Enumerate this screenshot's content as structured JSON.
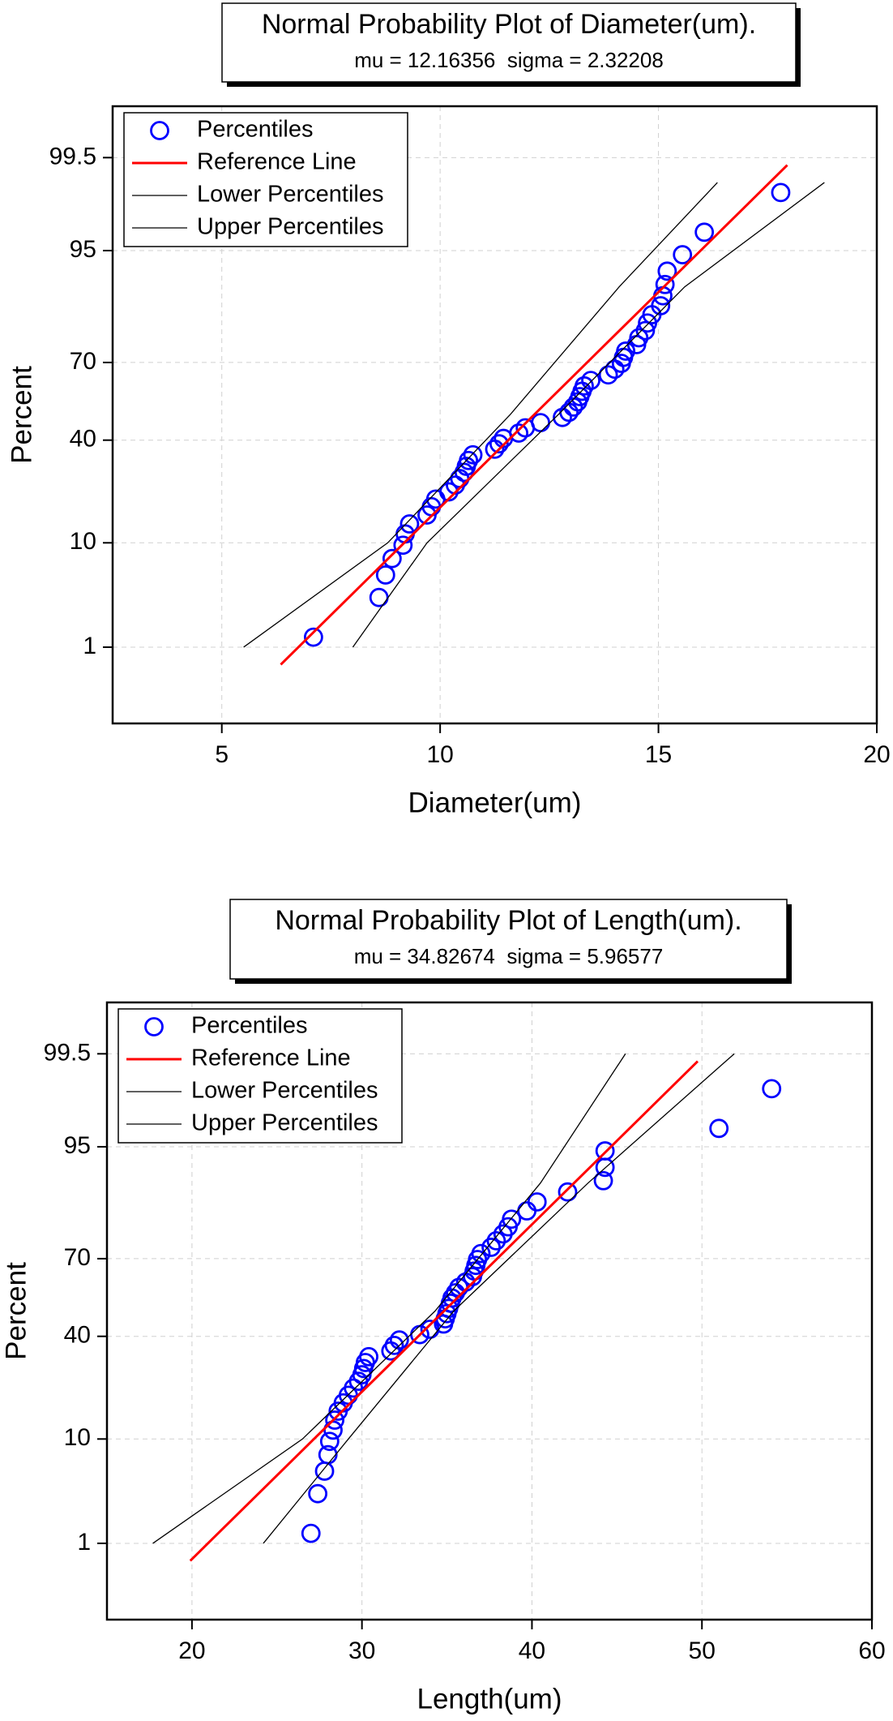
{
  "chart_data": [
    {
      "type": "probability",
      "title": "Normal Probability Plot of Diameter(um).",
      "subtitle": "mu = 12.16356  sigma = 2.32208",
      "x_label": "Diameter(um)",
      "y_label": "Percent",
      "xlim": [
        2.5,
        20
      ],
      "xticks": [
        5,
        10,
        15,
        20
      ],
      "ylim": [
        0.1,
        99.9
      ],
      "yticks": [
        1,
        10,
        40,
        70,
        95,
        99.5
      ],
      "yscale": "probability",
      "grid": true,
      "legend": "top-left",
      "series": [
        {
          "name": "Percentiles",
          "color": "#0000ff",
          "marker": "circle",
          "x": [
            7.1,
            8.6,
            8.75,
            8.9,
            9.15,
            9.2,
            9.3,
            9.7,
            9.8,
            9.9,
            10.2,
            10.35,
            10.45,
            10.55,
            10.6,
            10.65,
            10.75,
            11.25,
            11.35,
            11.45,
            11.8,
            11.95,
            12.3,
            12.8,
            12.95,
            13.05,
            13.15,
            13.2,
            13.25,
            13.3,
            13.45,
            13.85,
            14.0,
            14.15,
            14.2,
            14.25,
            14.5,
            14.55,
            14.7,
            14.75,
            14.85,
            15.05,
            15.1,
            15.15,
            15.2,
            15.55,
            16.05,
            17.8
          ],
          "values": [
            1.3,
            3.37,
            5.44,
            7.51,
            9.59,
            11.66,
            13.73,
            15.8,
            17.88,
            19.95,
            22.02,
            24.09,
            26.17,
            28.24,
            30.31,
            32.38,
            34.46,
            36.53,
            38.6,
            40.67,
            42.75,
            44.82,
            46.89,
            48.96,
            51.04,
            53.11,
            55.18,
            57.25,
            59.33,
            61.4,
            63.47,
            65.54,
            67.62,
            69.69,
            71.76,
            73.83,
            75.91,
            77.98,
            80.05,
            82.12,
            84.2,
            86.27,
            88.34,
            90.41,
            92.49,
            94.56,
            96.63,
            98.7
          ]
        },
        {
          "name": "Reference Line",
          "color": "#ff0000",
          "x": [
            6.35,
            17.95
          ],
          "values": [
            0.62,
            99.38
          ]
        },
        {
          "name": "Lower Percentiles",
          "color": "#000000",
          "x": [
            5.5,
            8.8,
            11.6,
            14.1,
            16.35
          ],
          "values": [
            1,
            10,
            50,
            90,
            99
          ]
        },
        {
          "name": "Upper Percentiles",
          "color": "#000000",
          "x": [
            8.0,
            9.7,
            12.7,
            15.6,
            18.8
          ],
          "values": [
            1,
            10,
            50,
            90,
            99
          ]
        }
      ]
    },
    {
      "type": "probability",
      "title": "Normal Probability Plot of Length(um).",
      "subtitle": "mu = 34.82674  sigma = 5.96577",
      "x_label": "Length(um)",
      "y_label": "Percent",
      "xlim": [
        15,
        60
      ],
      "xticks": [
        20,
        30,
        40,
        50,
        60
      ],
      "ylim": [
        0.1,
        99.9
      ],
      "yticks": [
        1,
        10,
        40,
        70,
        95,
        99.5
      ],
      "yscale": "probability",
      "grid": true,
      "legend": "top-left",
      "series": [
        {
          "name": "Percentiles",
          "color": "#0000ff",
          "marker": "circle",
          "x": [
            27.0,
            27.4,
            27.8,
            28.0,
            28.1,
            28.3,
            28.4,
            28.6,
            28.9,
            29.2,
            29.5,
            29.8,
            30.0,
            30.1,
            30.2,
            30.4,
            31.7,
            31.9,
            32.2,
            33.4,
            34.0,
            34.8,
            34.9,
            35.0,
            35.1,
            35.2,
            35.3,
            35.5,
            35.7,
            36.1,
            36.5,
            36.6,
            36.7,
            36.8,
            37.0,
            37.6,
            37.9,
            38.3,
            38.6,
            38.8,
            39.7,
            40.3,
            42.1,
            44.2,
            44.3,
            44.3,
            51.0,
            54.1
          ],
          "values": [
            1.3,
            3.37,
            5.44,
            7.51,
            9.59,
            11.66,
            13.73,
            15.8,
            17.88,
            19.95,
            22.02,
            24.09,
            26.17,
            28.24,
            30.31,
            32.38,
            34.46,
            36.53,
            38.6,
            40.67,
            42.75,
            44.82,
            46.89,
            48.96,
            51.04,
            53.11,
            55.18,
            57.25,
            59.33,
            61.4,
            63.47,
            65.54,
            67.62,
            69.69,
            71.76,
            73.83,
            75.91,
            77.98,
            80.05,
            82.12,
            84.2,
            86.27,
            88.34,
            90.41,
            92.49,
            94.56,
            96.63,
            98.7
          ]
        },
        {
          "name": "Reference Line",
          "color": "#ff0000",
          "x": [
            19.9,
            49.75
          ],
          "values": [
            0.62,
            99.38
          ]
        },
        {
          "name": "Lower Percentiles",
          "color": "#000000",
          "x": [
            17.7,
            26.5,
            34.3,
            40.5,
            45.5
          ],
          "values": [
            1,
            10,
            50,
            90,
            99.5
          ]
        },
        {
          "name": "Upper Percentiles",
          "color": "#000000",
          "x": [
            24.2,
            29.2,
            35.4,
            43.3,
            51.9
          ],
          "values": [
            1,
            10,
            50,
            90,
            99.5
          ]
        }
      ]
    }
  ]
}
